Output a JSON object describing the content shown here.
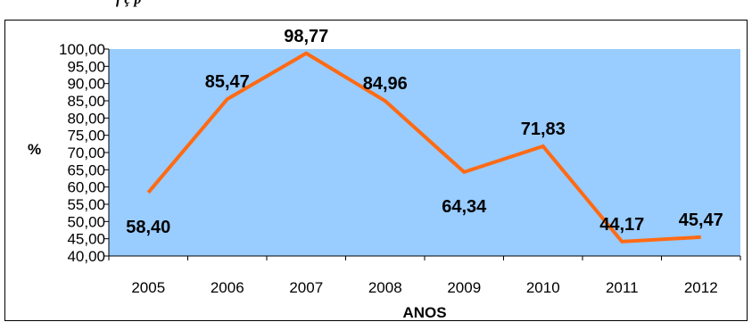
{
  "caption": "f                                     ç                              p",
  "chart_data": {
    "type": "line",
    "title": "",
    "xlabel": "ANOS",
    "ylabel": "%",
    "categories": [
      "2005",
      "2006",
      "2007",
      "2008",
      "2009",
      "2010",
      "2011",
      "2012"
    ],
    "values": [
      58.4,
      85.47,
      98.77,
      84.96,
      64.34,
      71.83,
      44.17,
      45.47
    ],
    "value_labels": [
      "58,40",
      "85,47",
      "98,77",
      "84,96",
      "64,34",
      "71,83",
      "44,17",
      "45,47"
    ],
    "ylim": [
      40,
      100
    ],
    "yticks": [
      40,
      45,
      50,
      55,
      60,
      65,
      70,
      75,
      80,
      85,
      90,
      95,
      100
    ],
    "ytick_labels": [
      "40,00",
      "45,00",
      "50,00",
      "55,00",
      "60,00",
      "65,00",
      "70,00",
      "75,00",
      "80,00",
      "85,00",
      "90,00",
      "95,00",
      "100,00"
    ],
    "grid": false,
    "legend": "none",
    "colors": {
      "plot_background": "#99ccff",
      "line": "#ff6a13",
      "axis": "#000000"
    }
  }
}
